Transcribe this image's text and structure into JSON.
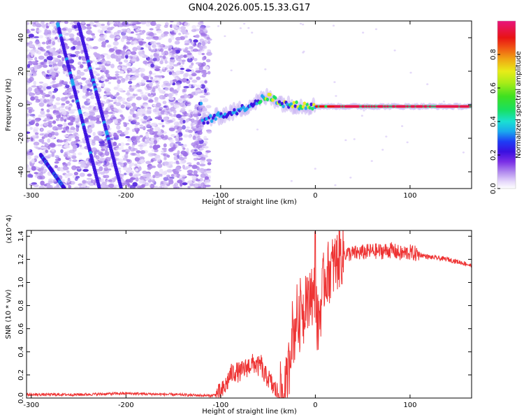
{
  "title": "GN04.2026.005.15.33.G17",
  "chart_data": [
    {
      "type": "heatmap",
      "name": "spectrogram",
      "xlabel": "Height of straight line (km)",
      "ylabel": "Frequency (Hz)",
      "xlim": [
        -305,
        165
      ],
      "ylim": [
        -50,
        50
      ],
      "xticks": [
        -300,
        -200,
        -100,
        0,
        100
      ],
      "yticks": [
        -40,
        -20,
        0,
        20,
        40
      ],
      "grid": false,
      "colorbar": {
        "label": "Normalized spectral amplitude",
        "range": [
          0,
          1
        ],
        "ticks": [
          0.0,
          0.2,
          0.4,
          0.6,
          0.8
        ]
      },
      "features": [
        {
          "name": "main-tone",
          "description": "strong signal near 0 Hz from about -120 km to 165 km",
          "x": [
            -120,
            -80,
            -50,
            -30,
            0,
            50,
            100,
            165
          ],
          "y": [
            -10,
            -3,
            5,
            0,
            -1,
            -1,
            -1,
            -1
          ]
        },
        {
          "name": "diagonal-streak-1",
          "x": [
            -272,
            -228
          ],
          "y": [
            48,
            -50
          ]
        },
        {
          "name": "diagonal-streak-2",
          "x": [
            -250,
            -205
          ],
          "y": [
            48,
            -50
          ]
        },
        {
          "name": "diagonal-streak-3",
          "x": [
            -290,
            -265
          ],
          "y": [
            -30,
            -50
          ]
        }
      ]
    },
    {
      "type": "line",
      "name": "snr",
      "xlabel": "Height of straight line (km)",
      "ylabel": "SNR (10 * v/v)",
      "y_scale_note": "(x10^4)",
      "xlim": [
        -305,
        165
      ],
      "ylim": [
        0,
        1.45
      ],
      "xticks": [
        -300,
        -200,
        -100,
        0,
        100
      ],
      "yticks": [
        0.0,
        0.2,
        0.4,
        0.6,
        0.8,
        1.0,
        1.2,
        1.4
      ],
      "grid": false,
      "series": [
        {
          "name": "SNR",
          "color": "#ee3333",
          "x": [
            -305,
            -250,
            -200,
            -150,
            -110,
            -100,
            -95,
            -90,
            -85,
            -80,
            -75,
            -70,
            -65,
            -60,
            -57,
            -55,
            -50,
            -45,
            -40,
            -35,
            -30,
            -27,
            -25,
            -22,
            -20,
            -17,
            -15,
            -12,
            -10,
            -7,
            -5,
            -2,
            0,
            2,
            5,
            8,
            10,
            15,
            20,
            25,
            30,
            40,
            50,
            60,
            70,
            80,
            90,
            100,
            110,
            120,
            130,
            140,
            150,
            160,
            165
          ],
          "y": [
            0.03,
            0.03,
            0.04,
            0.03,
            0.02,
            0.04,
            0.1,
            0.2,
            0.23,
            0.22,
            0.25,
            0.28,
            0.3,
            0.27,
            0.3,
            0.2,
            0.18,
            0.1,
            0.05,
            0.03,
            0.1,
            0.35,
            0.6,
            0.55,
            0.75,
            0.6,
            0.9,
            0.7,
            0.95,
            0.75,
            1.0,
            0.8,
            1.05,
            0.6,
            0.75,
            0.95,
            1.05,
            1.1,
            1.15,
            1.22,
            1.25,
            1.25,
            1.26,
            1.27,
            1.27,
            1.28,
            1.25,
            1.26,
            1.24,
            1.22,
            1.21,
            1.2,
            1.18,
            1.16,
            1.14
          ]
        }
      ]
    }
  ]
}
